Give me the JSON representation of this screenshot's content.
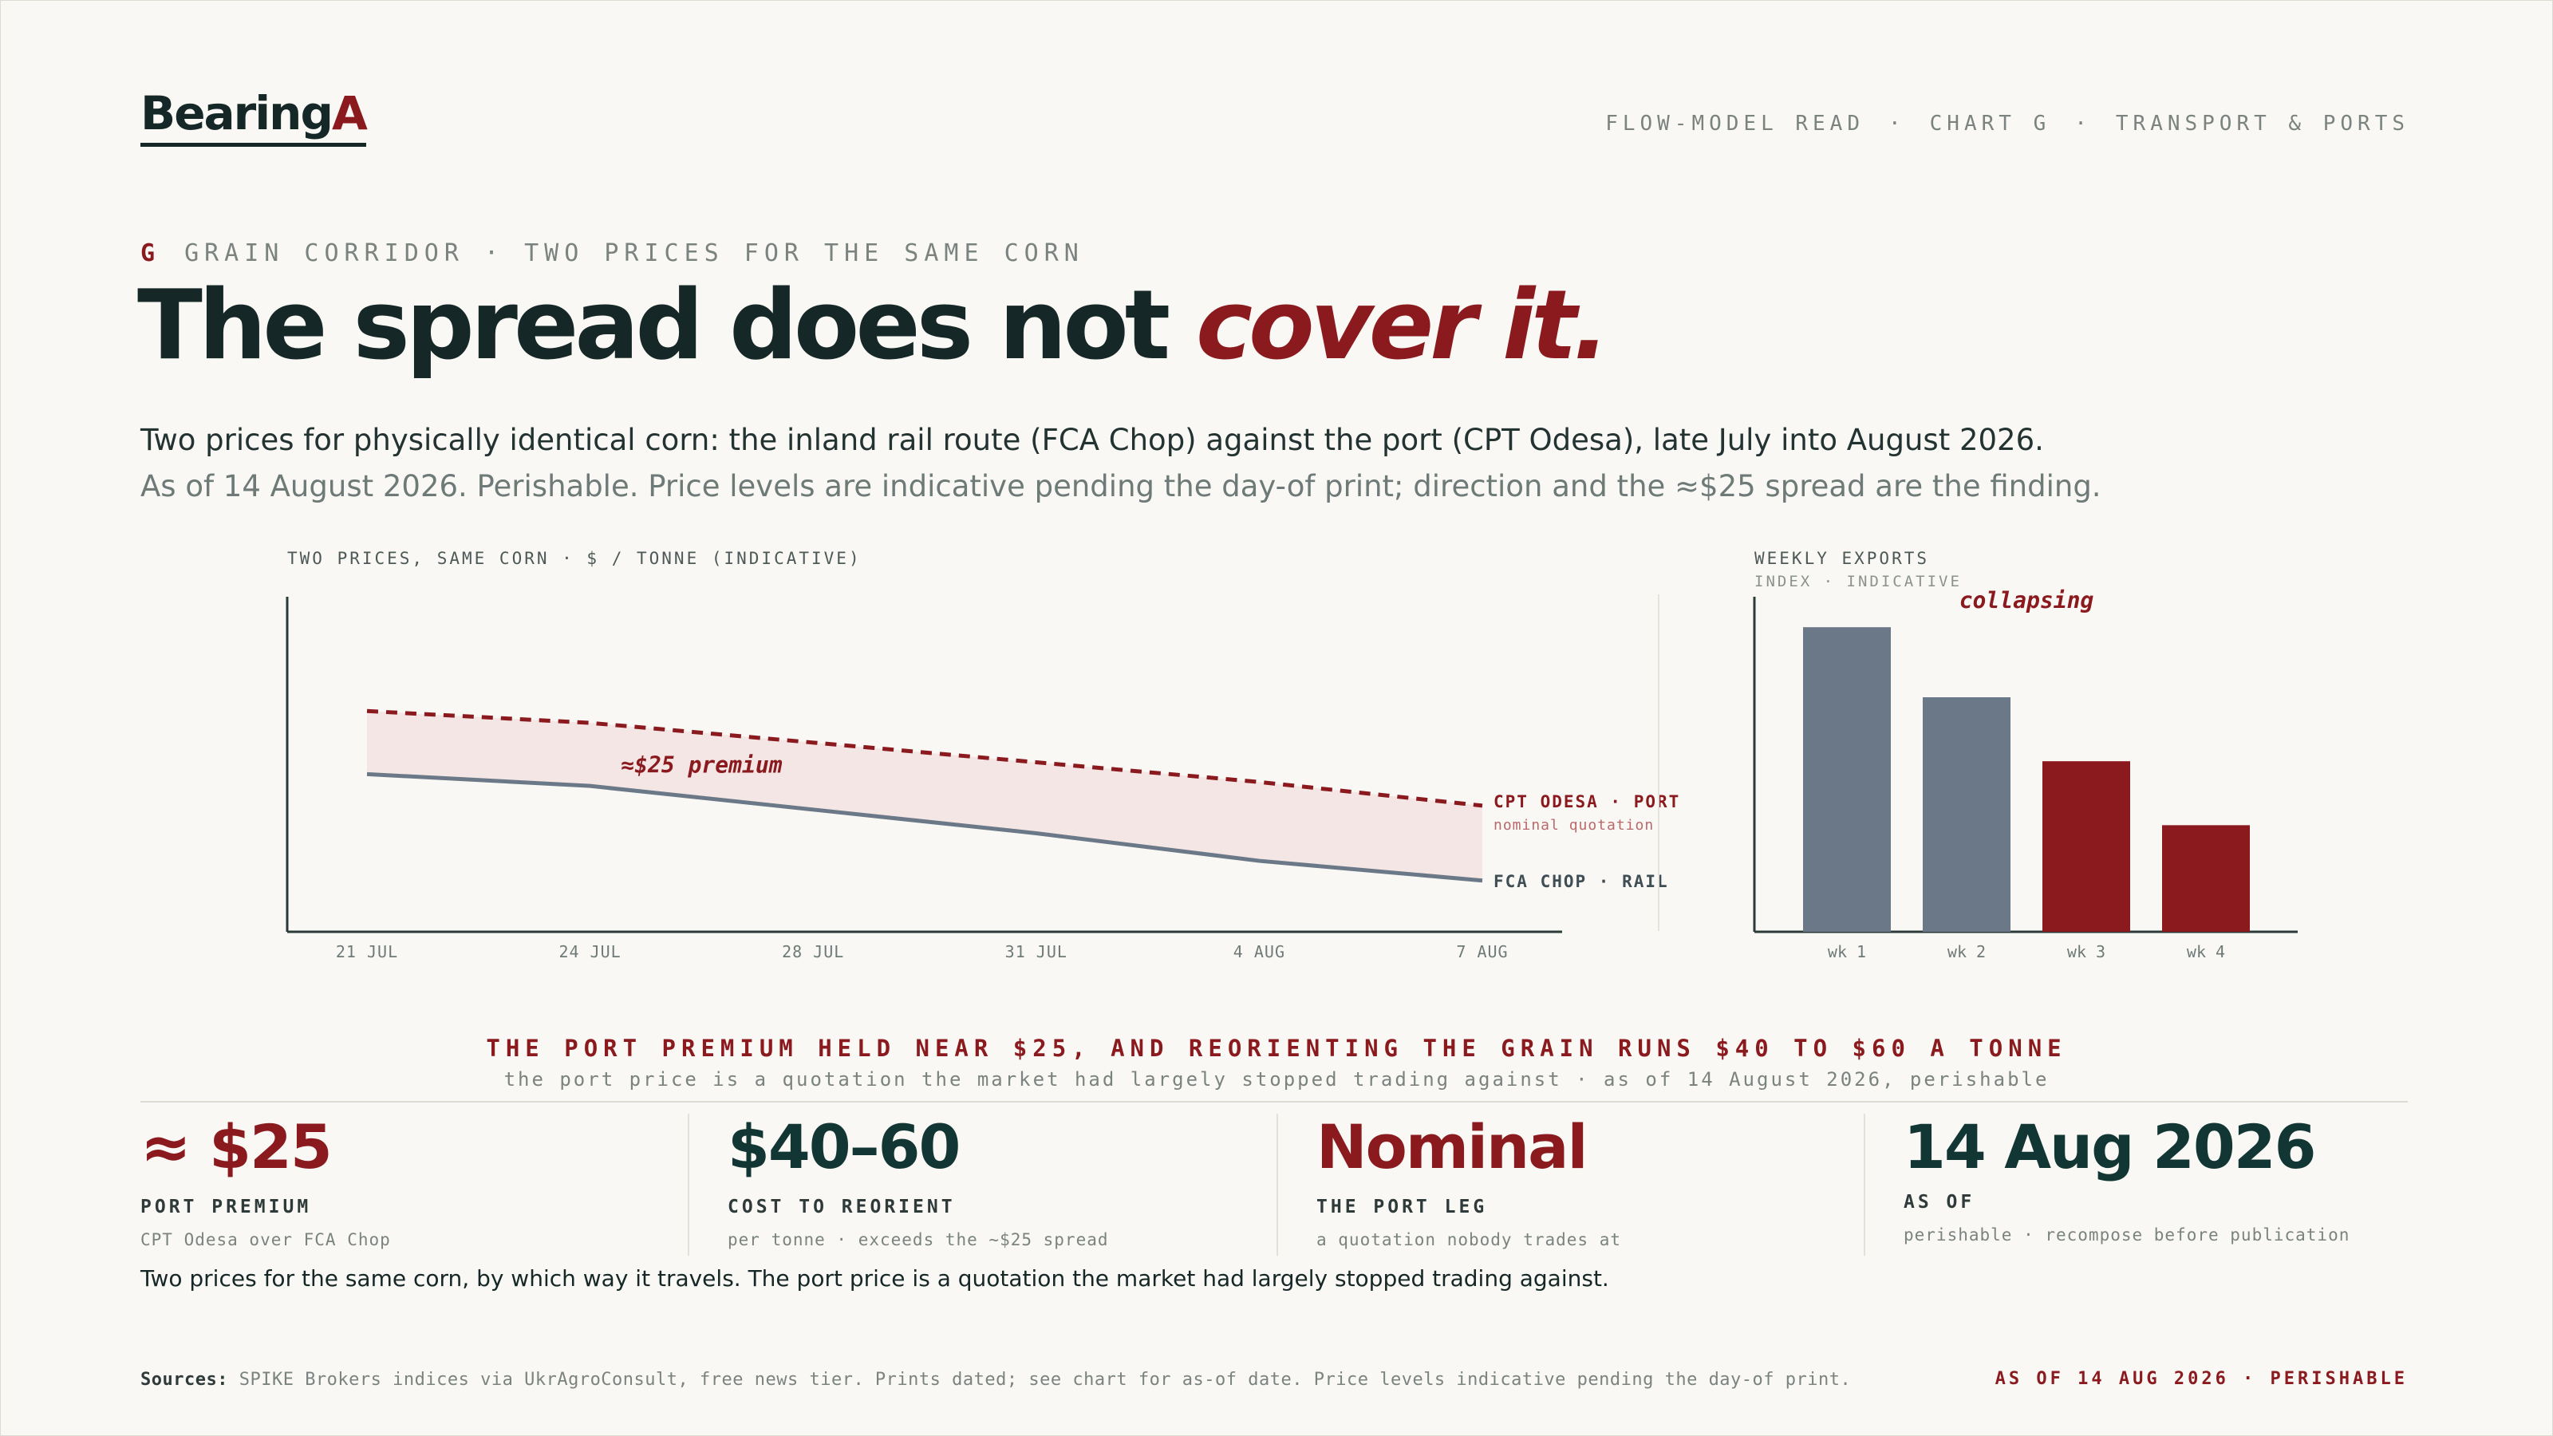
{
  "brand": {
    "name": "Bearing",
    "accent": "A"
  },
  "nav": {
    "items": [
      "FLOW-MODEL READ",
      "CHART G",
      "TRANSPORT & PORTS"
    ],
    "separator": "·"
  },
  "header": {
    "section_letter": "G",
    "kicker": "GRAIN CORRIDOR · TWO PRICES FOR THE SAME CORN",
    "headline_main": "The spread does not ",
    "headline_em": "cover it.",
    "lede": "Two prices for physically identical corn: the inland rail route (FCA Chop) against the port (CPT Odesa), late July into August 2026.",
    "lede_note": "As of 14 August 2026. Perishable. Price levels are indicative pending the day-of print; direction and the ≈$25 spread are the finding."
  },
  "colors": {
    "accent": "#8b1a1f",
    "slate": "#6b7887",
    "ink": "#152726",
    "band": "#f3e6e5"
  },
  "chart_data": [
    {
      "type": "line",
      "title": "TWO PRICES, SAME CORN · $ / TONNE (INDICATIVE)",
      "x": [
        "21 JUL",
        "24 JUL",
        "28 JUL",
        "31 JUL",
        "4 AUG",
        "7 AUG"
      ],
      "ylim": [
        140,
        225
      ],
      "grid": false,
      "series": [
        {
          "name": "CPT ODESA · PORT",
          "sublabel": "nominal quotation",
          "style": "dashed",
          "color": "#8b1a1f",
          "values": [
            196,
            193,
            188,
            183,
            178,
            172
          ]
        },
        {
          "name": "FCA CHOP · RAIL",
          "style": "solid",
          "color": "#6b7887",
          "values": [
            180,
            177,
            171,
            165,
            158,
            153
          ]
        }
      ],
      "annotation": "≈$25 premium"
    },
    {
      "type": "bar",
      "title": "WEEKLY EXPORTS",
      "subtitle": "INDEX · INDICATIVE",
      "categories": [
        "wk 1",
        "wk 2",
        "wk 3",
        "wk 4"
      ],
      "values": [
        100,
        77,
        56,
        35
      ],
      "ylim": [
        0,
        110
      ],
      "colors": [
        "#6b7887",
        "#6b7887",
        "#8b1a1f",
        "#8b1a1f"
      ],
      "annotation": "collapsing"
    }
  ],
  "banner": {
    "headline": "THE PORT PREMIUM HELD NEAR $25, AND REORIENTING THE GRAIN RUNS $40 TO $60 A TONNE",
    "sub": "the port price is a quotation the market had largely stopped trading against · as of 14 August 2026, perishable"
  },
  "stats": [
    {
      "value": "≈ $25",
      "label": "PORT PREMIUM",
      "note": "CPT Odesa over FCA Chop"
    },
    {
      "value": "$40–60",
      "label": "COST TO REORIENT",
      "note": "per tonne · exceeds the ~$25 spread"
    },
    {
      "value": "Nominal",
      "label": "THE PORT LEG",
      "note": "a quotation nobody trades at"
    },
    {
      "value": "14 Aug 2026",
      "label": "AS OF",
      "note": "perishable · recompose before publication"
    }
  ],
  "caption": "Two prices for the same corn, by which way it travels. The port price is a quotation the market had largely stopped trading against.",
  "footer": {
    "sources_label": "Sources:",
    "sources": "SPIKE Brokers indices via UkrAgroConsult, free news tier. Prints dated; see chart for as-of date. Price levels indicative pending the day-of print.",
    "stamp": "AS OF 14 AUG 2026 · PERISHABLE"
  }
}
